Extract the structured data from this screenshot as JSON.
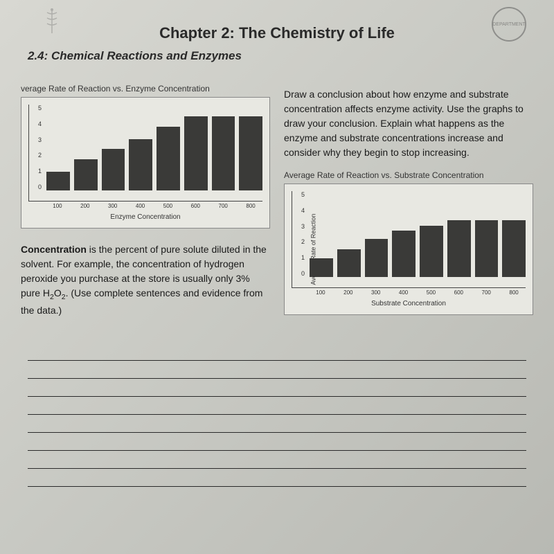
{
  "header": {
    "chapter_title": "Chapter 2: The Chemistry of Life",
    "section_title": "2.4: Chemical Reactions and Enzymes",
    "seal_text": "DEPARTMENT"
  },
  "chart1": {
    "title": "verage Rate of Reaction vs. Enzyme Concentration",
    "type": "bar",
    "categories": [
      "100",
      "200",
      "300",
      "400",
      "500",
      "600",
      "700",
      "800"
    ],
    "values": [
      1.1,
      1.8,
      2.4,
      3.0,
      3.7,
      4.3,
      4.3,
      4.3
    ],
    "ymax": 5,
    "ytick_step": 1,
    "yticks": [
      "0",
      "1",
      "2",
      "3",
      "4",
      "5"
    ],
    "bar_color": "#3a3a38",
    "background_color": "#e8e8e2",
    "xlabel": "Enzyme Concentration",
    "ylabel": ""
  },
  "instruction": {
    "text": "Draw a conclusion about how enzyme and substrate concentration affects enzyme activity. Use the graphs to draw your conclusion. Explain what happens as the enzyme and substrate concentrations increase and consider why they begin to stop increasing."
  },
  "chart2": {
    "title": "Average Rate of Reaction vs. Substrate Concentration",
    "type": "bar",
    "categories": [
      "100",
      "200",
      "300",
      "400",
      "500",
      "600",
      "700",
      "800"
    ],
    "values": [
      1.1,
      1.6,
      2.2,
      2.7,
      3.0,
      3.3,
      3.3,
      3.3
    ],
    "ymax": 5,
    "ytick_step": 1,
    "yticks": [
      "0",
      "1",
      "2",
      "3",
      "4",
      "5"
    ],
    "bar_color": "#3a3a38",
    "background_color": "#e8e8e2",
    "xlabel": "Substrate Concentration",
    "ylabel": "Average Rate of Reaction"
  },
  "concentration": {
    "bold_word": "Concentration",
    "rest": " is the percent of pure solute diluted in the solvent. For example, the concentration of hydrogen peroxide you purchase at the store is usually only 3% pure H",
    "sub": "2",
    "mid": "O",
    "sub2": "2",
    "end": ". (Use complete sentences and evidence from the data.)"
  },
  "answer_line_count": 8
}
